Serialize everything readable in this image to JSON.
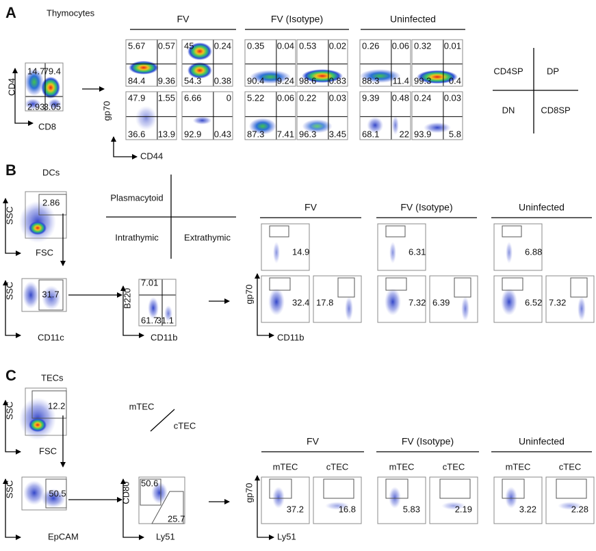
{
  "panel_a": {
    "letter": "A",
    "title": "Thymocytes",
    "gate_plot": {
      "y_label": "CD4",
      "x_label": "CD8",
      "quadrants": [
        14.7,
        79.4,
        2.93,
        3.05
      ]
    },
    "groups": [
      "FV",
      "FV (Isotype)",
      "Uninfected"
    ],
    "top_row": [
      [
        5.67,
        0.57,
        84.4,
        9.36
      ],
      [
        45,
        0.24,
        54.3,
        0.38
      ],
      [
        0.35,
        0.04,
        90.4,
        9.24
      ],
      [
        0.53,
        0.02,
        98.6,
        0.83
      ],
      [
        0.26,
        0.06,
        88.3,
        11.4
      ],
      [
        0.32,
        0.01,
        99.3,
        0.4
      ]
    ],
    "bottom_row": [
      [
        47.9,
        1.55,
        36.6,
        13.9
      ],
      [
        6.66,
        0,
        92.9,
        0.43
      ],
      [
        5.22,
        0.06,
        87.3,
        7.41
      ],
      [
        0.22,
        0.03,
        96.3,
        3.45
      ],
      [
        9.39,
        0.48,
        68.1,
        22
      ],
      [
        0.24,
        0.03,
        93.9,
        5.8
      ]
    ],
    "y_label": "gp70",
    "x_label": "CD44",
    "legend": [
      "CD4SP",
      "DP",
      "DN",
      "CD8SP"
    ]
  },
  "panel_b": {
    "letter": "B",
    "title": "DCs",
    "plot1": {
      "y_label": "SSC",
      "x_label": "FSC",
      "value": 2.86
    },
    "plot2": {
      "y_label": "SSC",
      "x_label": "CD11c",
      "value": 31.7
    },
    "plot3": {
      "y_label": "B220",
      "x_label": "CD11b",
      "values": [
        7.01,
        61.7,
        31.1
      ]
    },
    "legend": [
      "Plasmacytoid",
      "Intrathymic",
      "Extrathymic"
    ],
    "groups": [
      "FV",
      "FV (Isotype)",
      "Uninfected"
    ],
    "top_row": [
      14.9,
      6.31,
      6.88
    ],
    "bottom_row": [
      32.4,
      17.8,
      7.32,
      6.39,
      6.52,
      7.32
    ],
    "y_label": "gp70",
    "x_label": "CD11b"
  },
  "panel_c": {
    "letter": "C",
    "title": "TECs",
    "plot1": {
      "y_label": "SSC",
      "x_label": "FSC",
      "value": 12.2
    },
    "plot2": {
      "y_label": "SSC",
      "x_label": "EpCAM",
      "value": 50.5
    },
    "plot3": {
      "y_label": "CD80",
      "x_label": "Ly51",
      "values": [
        50.6,
        25.7
      ]
    },
    "legend": [
      "mTEC",
      "cTEC"
    ],
    "groups": [
      "FV",
      "FV (Isotype)",
      "Uninfected"
    ],
    "subheads": [
      "mTEC",
      "cTEC",
      "mTEC",
      "cTEC",
      "mTEC",
      "cTEC"
    ],
    "values": [
      37.2,
      16.8,
      5.83,
      2.19,
      3.22,
      2.28
    ],
    "y_label": "gp70",
    "x_label": "Ly51"
  }
}
